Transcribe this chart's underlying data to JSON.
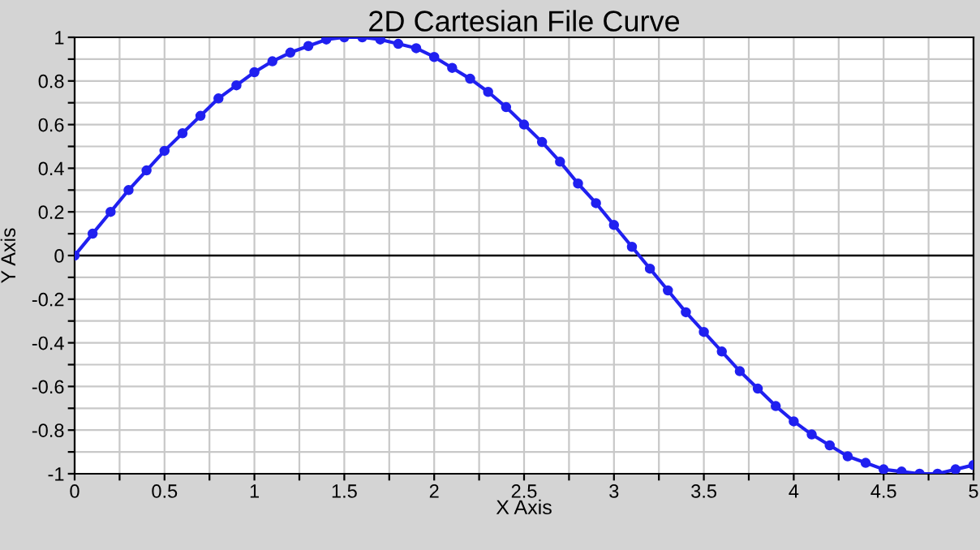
{
  "chart_data": {
    "type": "line",
    "title": "2D Cartesian File Curve",
    "xlabel": "X Axis",
    "ylabel": "Y Axis",
    "x": [
      0,
      0.1,
      0.2,
      0.3,
      0.4,
      0.5,
      0.6,
      0.7,
      0.8,
      0.9,
      1.0,
      1.1,
      1.2,
      1.3,
      1.4,
      1.5,
      1.6,
      1.7,
      1.8,
      1.9,
      2.0,
      2.1,
      2.2,
      2.3,
      2.4,
      2.5,
      2.6,
      2.7,
      2.8,
      2.9,
      3.0,
      3.1,
      3.2,
      3.3,
      3.4,
      3.5,
      3.6,
      3.7,
      3.8,
      3.9,
      4.0,
      4.1,
      4.2,
      4.3,
      4.4,
      4.5,
      4.6,
      4.7,
      4.8,
      4.9,
      5.0
    ],
    "series": [
      {
        "color": "#2020f0",
        "values": [
          0,
          0.1,
          0.2,
          0.3,
          0.39,
          0.48,
          0.56,
          0.64,
          0.72,
          0.78,
          0.84,
          0.89,
          0.93,
          0.96,
          0.99,
          1.0,
          1.0,
          0.99,
          0.97,
          0.95,
          0.91,
          0.86,
          0.81,
          0.75,
          0.68,
          0.6,
          0.52,
          0.43,
          0.33,
          0.24,
          0.14,
          0.04,
          -0.06,
          -0.16,
          -0.26,
          -0.35,
          -0.44,
          -0.53,
          -0.61,
          -0.69,
          -0.76,
          -0.82,
          -0.87,
          -0.92,
          -0.95,
          -0.98,
          -0.99,
          -1.0,
          -1.0,
          -0.98,
          -0.96
        ]
      }
    ],
    "xlim": [
      0,
      5
    ],
    "ylim": [
      -1,
      1
    ],
    "xticks": [
      0,
      {
        "value": 0.25,
        "label": null
      },
      0.5,
      {
        "value": 0.75,
        "label": null
      },
      1,
      {
        "value": 1.25,
        "label": null
      },
      1.5,
      {
        "value": 1.75,
        "label": null
      },
      2,
      {
        "value": 2.25,
        "label": null
      },
      2.5,
      {
        "value": 2.75,
        "label": null
      },
      3,
      {
        "value": 3.25,
        "label": null
      },
      3.5,
      {
        "value": 3.75,
        "label": null
      },
      4,
      {
        "value": 4.25,
        "label": null
      },
      4.5,
      {
        "value": 4.75,
        "label": null
      },
      5
    ],
    "yticks": [
      -1,
      {
        "value": -0.9,
        "label": null
      },
      -0.8,
      {
        "value": -0.7,
        "label": null
      },
      -0.6,
      {
        "value": -0.5,
        "label": null
      },
      -0.4,
      {
        "value": -0.3,
        "label": null
      },
      -0.2,
      {
        "value": -0.1,
        "label": null
      },
      0,
      {
        "value": 0.1,
        "label": null
      },
      0.2,
      {
        "value": 0.3,
        "label": null
      },
      0.4,
      {
        "value": 0.5,
        "label": null
      },
      0.6,
      {
        "value": 0.7,
        "label": null
      },
      0.8,
      {
        "value": 0.9,
        "label": null
      },
      1
    ],
    "ref_lines": [
      {
        "axis": "y",
        "value": 0,
        "color": "#000000"
      }
    ],
    "grid": true,
    "marker": "circle",
    "line_style": "solid"
  }
}
